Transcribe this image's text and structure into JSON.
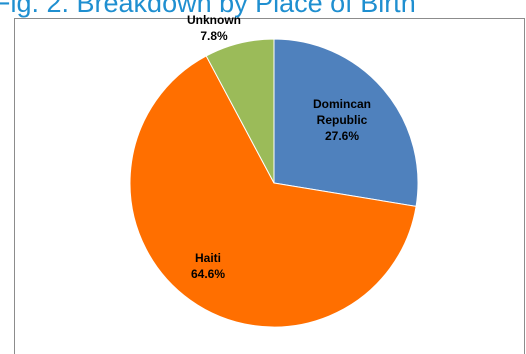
{
  "chart_data": {
    "type": "pie",
    "title": "Fig. 2. Breakdown by Place of Birth",
    "categories": [
      "Domincan Republic",
      "Haiti",
      "Unknown"
    ],
    "values": [
      27.6,
      64.6,
      7.8
    ],
    "labels": [
      [
        "Domincan",
        "Republic",
        "27.6%"
      ],
      [
        "Haiti",
        "64.6%"
      ],
      [
        "Unknown",
        "7.8%"
      ]
    ],
    "colors": [
      "#4f81bd",
      "#ff6f00",
      "#9bbb59"
    ],
    "start_angle_deg": 0,
    "direction": "clockwise",
    "legend": "none"
  }
}
